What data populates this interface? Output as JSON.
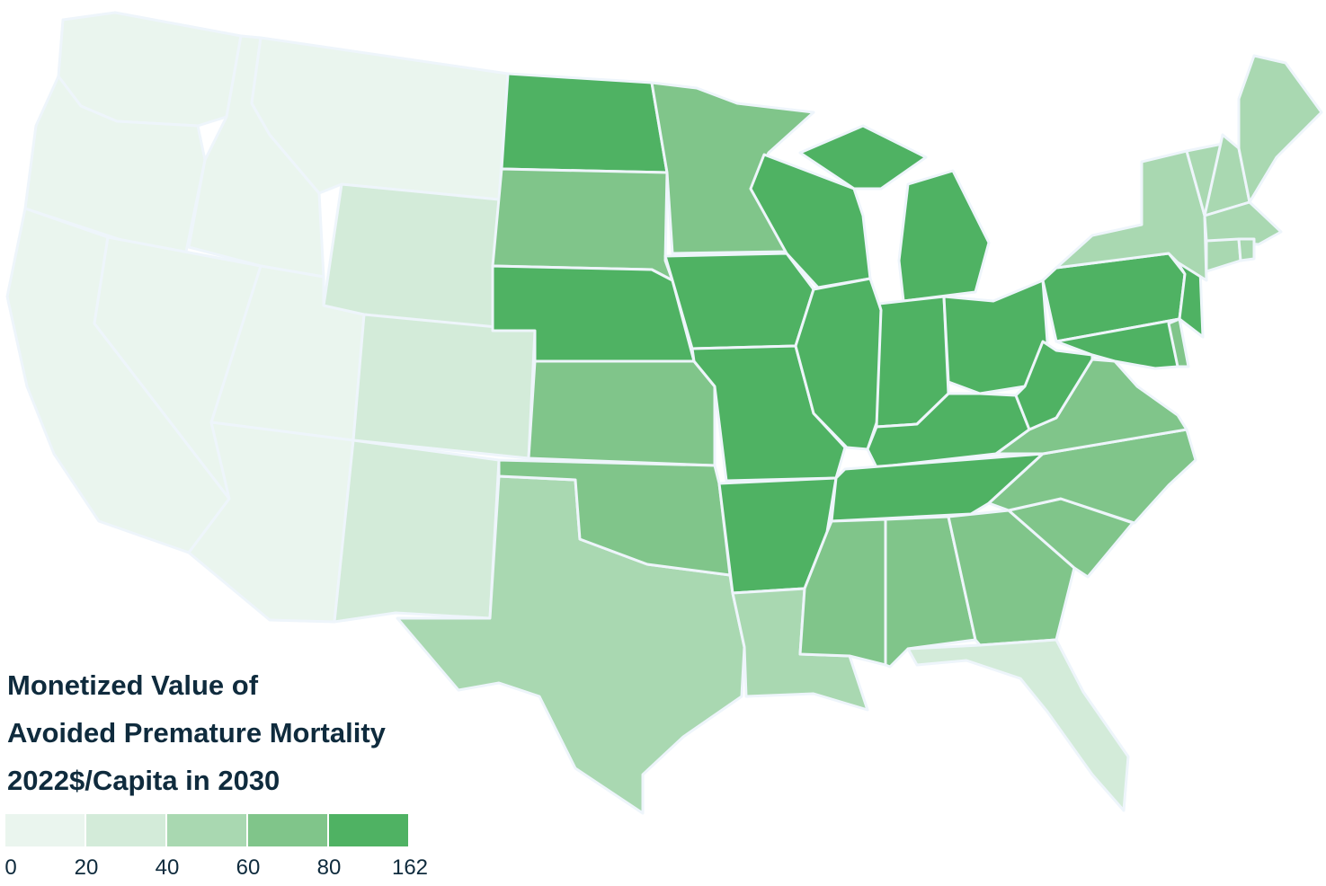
{
  "legend": {
    "title_lines": [
      "Monetized Value of",
      "Avoided Premature Mortality",
      "2022$/Capita in 2030"
    ],
    "breaks": [
      "0",
      "20",
      "40",
      "60",
      "80",
      "162"
    ],
    "colors": [
      "#eaf5ee",
      "#d3ebd9",
      "#a9d8b1",
      "#80c58a",
      "#4fb263"
    ]
  },
  "map_data": {
    "type": "choropleth",
    "classes": [
      {
        "range": [
          0,
          20
        ],
        "states": [
          "WA",
          "OR",
          "CA",
          "ID",
          "NV",
          "MT",
          "UT",
          "AZ"
        ]
      },
      {
        "range": [
          20,
          40
        ],
        "states": [
          "WY",
          "CO",
          "NM",
          "FL"
        ]
      },
      {
        "range": [
          40,
          60
        ],
        "states": [
          "TX",
          "LA",
          "NY",
          "VT",
          "NH",
          "ME",
          "MA",
          "CT",
          "RI"
        ]
      },
      {
        "range": [
          60,
          80
        ],
        "states": [
          "SD",
          "MN",
          "KS",
          "OK",
          "MS",
          "AL",
          "GA",
          "SC",
          "NC",
          "VA",
          "DE"
        ]
      },
      {
        "range": [
          80,
          162
        ],
        "states": [
          "ND",
          "NE",
          "IA",
          "MO",
          "AR",
          "WI",
          "IL",
          "MI",
          "IN",
          "OH",
          "KY",
          "TN",
          "WV",
          "PA",
          "NJ",
          "MD"
        ]
      }
    ]
  }
}
